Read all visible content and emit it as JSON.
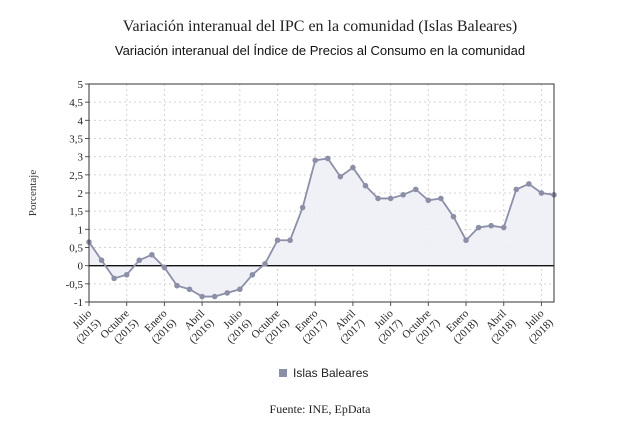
{
  "chart_data": {
    "type": "area",
    "title": "Variación interanual del IPC en la comunidad (Islas Baleares)",
    "subtitle": "Variación interanual del Índice de Precios al Consumo en la comunidad",
    "ylabel": "Porcentaje",
    "xlabel": "",
    "ylim": [
      -1,
      5
    ],
    "yticks": [
      5,
      4.5,
      4,
      3.5,
      3,
      2.5,
      2,
      1.5,
      1,
      0.5,
      0,
      -0.5,
      -1
    ],
    "ytick_labels": [
      "5",
      "4,5",
      "4",
      "3,5",
      "3",
      "2,5",
      "2",
      "1,5",
      "1",
      "0,5",
      "0",
      "-0,5",
      "-1"
    ],
    "grid": true,
    "legend_position": "bottom-center",
    "source": "Fuente: INE, EpData",
    "x_ticks": [
      {
        "index": 0,
        "label": [
          "Julio",
          "(2015)"
        ]
      },
      {
        "index": 3,
        "label": [
          "Octubre",
          "(2015)"
        ]
      },
      {
        "index": 6,
        "label": [
          "Enero",
          "(2016)"
        ]
      },
      {
        "index": 9,
        "label": [
          "Abril",
          "(2016)"
        ]
      },
      {
        "index": 12,
        "label": [
          "Julio",
          "(2016)"
        ]
      },
      {
        "index": 15,
        "label": [
          "Octubre",
          "(2016)"
        ]
      },
      {
        "index": 18,
        "label": [
          "Enero",
          "(2017)"
        ]
      },
      {
        "index": 21,
        "label": [
          "Abril",
          "(2017)"
        ]
      },
      {
        "index": 24,
        "label": [
          "Julio",
          "(2017)"
        ]
      },
      {
        "index": 27,
        "label": [
          "Octubre",
          "(2017)"
        ]
      },
      {
        "index": 30,
        "label": [
          "Enero",
          "(2018)"
        ]
      },
      {
        "index": 33,
        "label": [
          "Abril",
          "(2018)"
        ]
      },
      {
        "index": 36,
        "label": [
          "Julio",
          "(2018)"
        ]
      }
    ],
    "series": [
      {
        "name": "Islas Baleares",
        "color": "#8c8fa8",
        "values": [
          0.65,
          0.15,
          -0.35,
          -0.25,
          0.15,
          0.3,
          -0.05,
          -0.55,
          -0.65,
          -0.85,
          -0.85,
          -0.75,
          -0.65,
          -0.25,
          0.05,
          0.7,
          0.7,
          1.6,
          2.9,
          2.95,
          2.45,
          2.7,
          2.2,
          1.85,
          1.85,
          1.95,
          2.1,
          1.8,
          1.85,
          1.35,
          0.7,
          1.05,
          1.1,
          1.05,
          2.1,
          2.25,
          2.0,
          1.95
        ]
      }
    ]
  }
}
